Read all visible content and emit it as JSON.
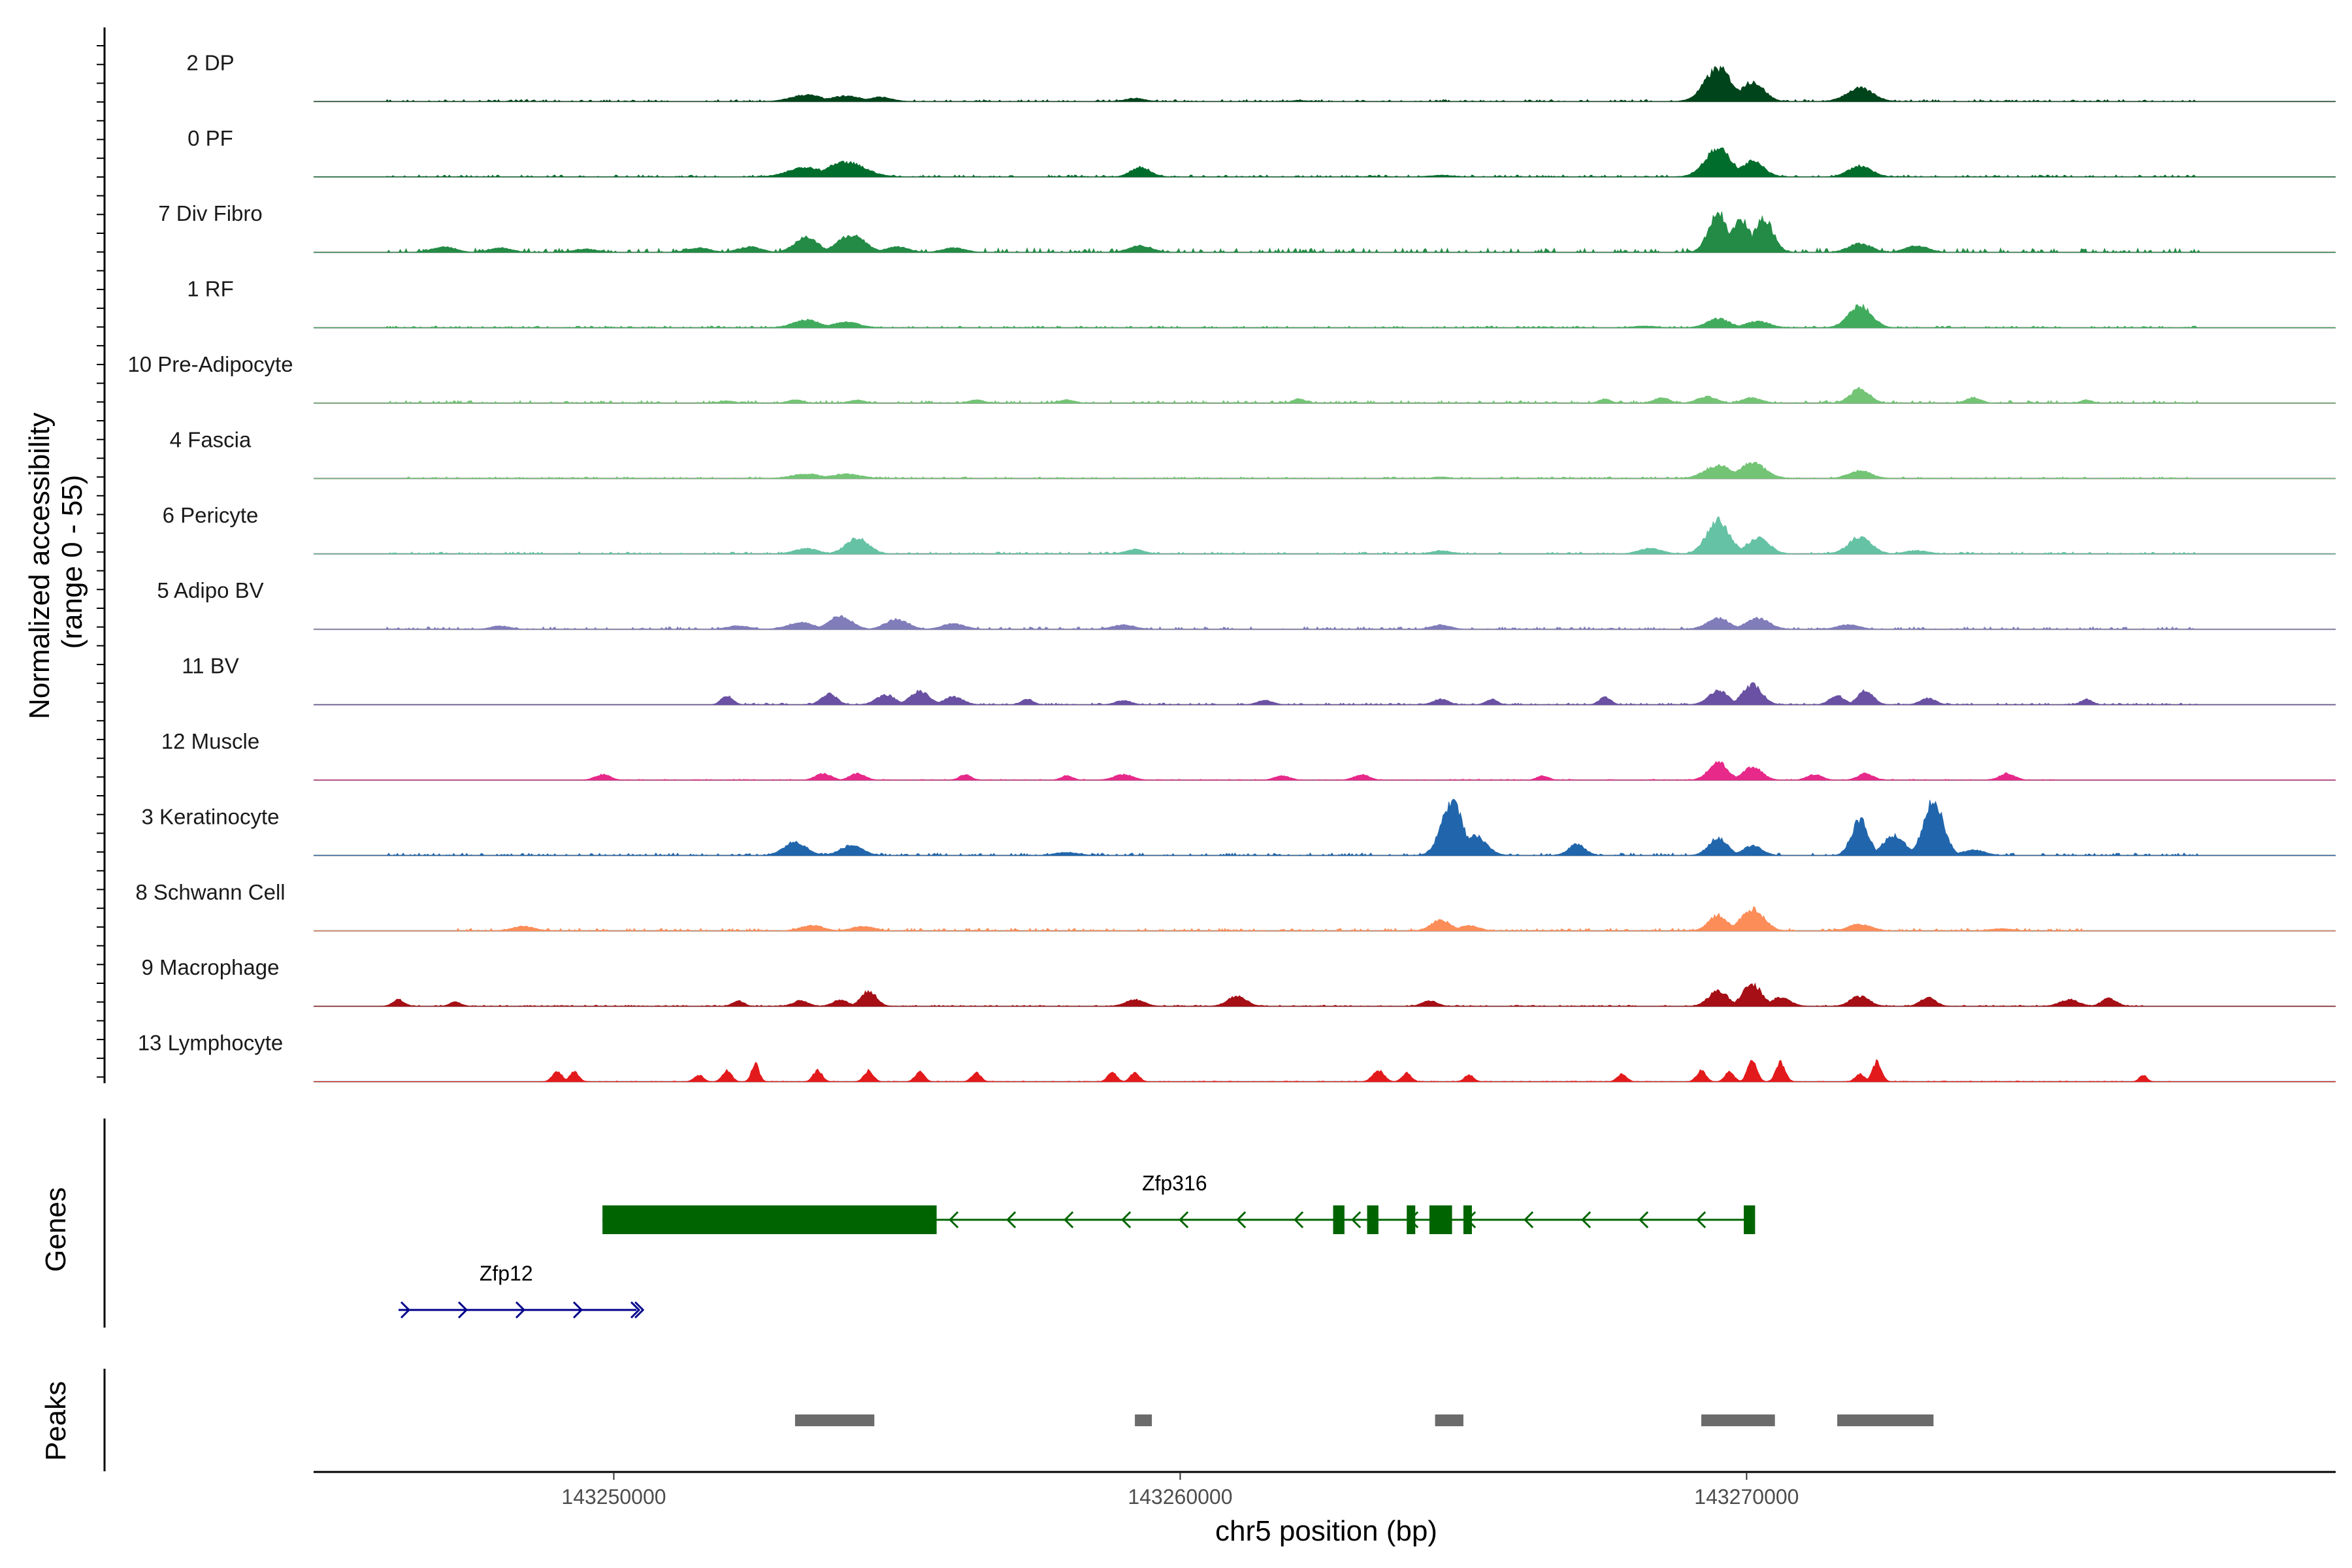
{
  "chart_data": {
    "type": "area",
    "region": {
      "chrom": "chr5",
      "start": 143244700,
      "end": 143280400
    },
    "y_title_line1": "Normalized accessibility",
    "y_title_line2": "(range 0 - 55)",
    "ylim": [
      0,
      55
    ],
    "x_axis": {
      "label": "chr5 position (bp)",
      "ticks": [
        143250000,
        143260000,
        143270000
      ],
      "tick_labels": [
        "143250000",
        "143260000",
        "143270000"
      ]
    },
    "panel_titles": {
      "genes": "Genes",
      "peaks": "Peaks"
    },
    "tracks": [
      {
        "name": "2 DP",
        "color": "#00441b",
        "peaks": [
          [
            143253400,
            6,
            400
          ],
          [
            143254100,
            5,
            400
          ],
          [
            143254700,
            4,
            300
          ],
          [
            143259200,
            3,
            250
          ],
          [
            143269500,
            30,
            350
          ],
          [
            143270100,
            18,
            300
          ],
          [
            143272000,
            12,
            350
          ],
          [
            143262100,
            1,
            200
          ]
        ],
        "noise": [
          [
            143246000,
            143278000,
            1.2
          ]
        ]
      },
      {
        "name": "0 PF",
        "color": "#006d2c",
        "peaks": [
          [
            143253400,
            9,
            450
          ],
          [
            143254100,
            13,
            500
          ],
          [
            143259300,
            9,
            250
          ],
          [
            143269500,
            25,
            350
          ],
          [
            143270100,
            14,
            300
          ],
          [
            143272000,
            10,
            300
          ],
          [
            143264600,
            1.5,
            300
          ]
        ],
        "noise": [
          [
            143246000,
            143278000,
            1.2
          ]
        ]
      },
      {
        "name": "7 Div Fibro",
        "color": "#238b45",
        "peaks": [
          [
            143247000,
            5,
            300
          ],
          [
            143248000,
            4,
            300
          ],
          [
            143249500,
            3,
            300
          ],
          [
            143251500,
            4,
            300
          ],
          [
            143252400,
            5,
            300
          ],
          [
            143253400,
            14,
            300
          ],
          [
            143254200,
            16,
            350
          ],
          [
            143255000,
            5,
            300
          ],
          [
            143256000,
            4,
            300
          ],
          [
            143259300,
            6,
            300
          ],
          [
            143269500,
            35,
            250
          ],
          [
            143269900,
            30,
            250
          ],
          [
            143270300,
            30,
            250
          ],
          [
            143272000,
            8,
            300
          ],
          [
            143273000,
            6,
            300
          ]
        ],
        "noise": [
          [
            143246000,
            143278000,
            2.5
          ]
        ]
      },
      {
        "name": "1 RF",
        "color": "#41ab5d",
        "peaks": [
          [
            143253400,
            7,
            350
          ],
          [
            143254100,
            5,
            350
          ],
          [
            143269500,
            8,
            300
          ],
          [
            143270200,
            6,
            300
          ],
          [
            143272000,
            20,
            300
          ],
          [
            143268200,
            1.5,
            300
          ]
        ],
        "noise": [
          [
            143246000,
            143278000,
            1.0
          ]
        ]
      },
      {
        "name": "10 Pre-Adipocyte",
        "color": "#74c476",
        "peaks": [
          [
            143252000,
            2,
            200
          ],
          [
            143253200,
            3,
            200
          ],
          [
            143254300,
            3,
            200
          ],
          [
            143256400,
            3,
            200
          ],
          [
            143258000,
            3,
            200
          ],
          [
            143262100,
            4,
            150
          ],
          [
            143267500,
            4,
            150
          ],
          [
            143268500,
            5,
            200
          ],
          [
            143269300,
            6,
            250
          ],
          [
            143270100,
            5,
            250
          ],
          [
            143272000,
            13,
            250
          ],
          [
            143274000,
            5,
            200
          ],
          [
            143276000,
            3,
            150
          ]
        ],
        "noise": [
          [
            143246000,
            143278000,
            1.6
          ]
        ]
      },
      {
        "name": "4 Fascia",
        "color": "#74c476",
        "peaks": [
          [
            143253400,
            4,
            400
          ],
          [
            143254100,
            4,
            400
          ],
          [
            143269500,
            12,
            350
          ],
          [
            143270100,
            14,
            350
          ],
          [
            143272000,
            7,
            300
          ],
          [
            143264600,
            1.5,
            200
          ]
        ],
        "noise": [
          [
            143246000,
            143278000,
            1.0
          ]
        ]
      },
      {
        "name": "6 Pericyte",
        "color": "#66c2a4",
        "peaks": [
          [
            143253400,
            5,
            300
          ],
          [
            143254300,
            14,
            300
          ],
          [
            143259200,
            4,
            250
          ],
          [
            143264600,
            3,
            250
          ],
          [
            143268300,
            5,
            300
          ],
          [
            143269500,
            30,
            300
          ],
          [
            143270200,
            14,
            300
          ],
          [
            143272000,
            15,
            300
          ],
          [
            143273000,
            3,
            300
          ]
        ],
        "noise": [
          [
            143246000,
            143278000,
            1.2
          ]
        ]
      },
      {
        "name": "5 Adipo BV",
        "color": "#807dba",
        "peaks": [
          [
            143248000,
            3,
            250
          ],
          [
            143252200,
            3,
            300
          ],
          [
            143253300,
            6,
            350
          ],
          [
            143254000,
            12,
            300
          ],
          [
            143255000,
            9,
            300
          ],
          [
            143256000,
            5,
            300
          ],
          [
            143259000,
            4,
            300
          ],
          [
            143264600,
            4,
            250
          ],
          [
            143269500,
            10,
            300
          ],
          [
            143270200,
            10,
            300
          ],
          [
            143271800,
            4,
            300
          ]
        ],
        "noise": [
          [
            143246000,
            143278000,
            1.5
          ]
        ]
      },
      {
        "name": "11 BV",
        "color": "#6a51a3",
        "peaks": [
          [
            143252000,
            8,
            150
          ],
          [
            143253800,
            10,
            200
          ],
          [
            143254800,
            9,
            250
          ],
          [
            143255400,
            12,
            250
          ],
          [
            143256000,
            7,
            250
          ],
          [
            143257300,
            5,
            150
          ],
          [
            143259000,
            4,
            200
          ],
          [
            143261500,
            4,
            200
          ],
          [
            143264600,
            5,
            200
          ],
          [
            143265500,
            5,
            150
          ],
          [
            143267500,
            7,
            150
          ],
          [
            143269500,
            13,
            250
          ],
          [
            143270100,
            18,
            250
          ],
          [
            143271600,
            8,
            200
          ],
          [
            143272100,
            13,
            200
          ],
          [
            143273200,
            6,
            200
          ],
          [
            143276000,
            5,
            150
          ]
        ],
        "noise": [
          [
            143251800,
            143278000,
            1.0
          ]
        ]
      },
      {
        "name": "12 Muscle",
        "color": "#e7298a",
        "peaks": [
          [
            143249800,
            5,
            200
          ],
          [
            143253700,
            6,
            200
          ],
          [
            143254300,
            6,
            200
          ],
          [
            143256200,
            5,
            150
          ],
          [
            143258000,
            4,
            150
          ],
          [
            143259000,
            5,
            250
          ],
          [
            143261800,
            4,
            200
          ],
          [
            143263200,
            5,
            200
          ],
          [
            143266400,
            4,
            150
          ],
          [
            143269500,
            16,
            250
          ],
          [
            143270100,
            12,
            250
          ],
          [
            143271200,
            5,
            200
          ],
          [
            143272100,
            6,
            200
          ],
          [
            143274600,
            6,
            200
          ]
        ],
        "noise": [
          [
            143249500,
            143275500,
            0.5
          ]
        ]
      },
      {
        "name": "3 Keratinocyte",
        "color": "#2166ac",
        "peaks": [
          [
            143253200,
            12,
            300
          ],
          [
            143254200,
            9,
            300
          ],
          [
            143258000,
            3,
            300
          ],
          [
            143264800,
            48,
            280
          ],
          [
            143265200,
            18,
            300
          ],
          [
            143267000,
            10,
            220
          ],
          [
            143269500,
            16,
            250
          ],
          [
            143270100,
            9,
            250
          ],
          [
            143272000,
            32,
            220
          ],
          [
            143272600,
            18,
            280
          ],
          [
            143273300,
            48,
            260
          ],
          [
            143274000,
            5,
            300
          ]
        ],
        "noise": [
          [
            143246000,
            143278000,
            1.5
          ]
        ]
      },
      {
        "name": "8 Schwann Cell",
        "color": "#fc8d59",
        "peaks": [
          [
            143248400,
            4,
            300
          ],
          [
            143253500,
            5,
            300
          ],
          [
            143254400,
            4,
            300
          ],
          [
            143264600,
            10,
            250
          ],
          [
            143265100,
            5,
            250
          ],
          [
            143269500,
            14,
            250
          ],
          [
            143270100,
            20,
            300
          ],
          [
            143272000,
            6,
            300
          ],
          [
            143274500,
            2,
            300
          ]
        ],
        "noise": [
          [
            143247000,
            143276000,
            1.6
          ]
        ]
      },
      {
        "name": "9 Macrophage",
        "color": "#a50f15",
        "peaks": [
          [
            143246200,
            6,
            150
          ],
          [
            143247200,
            4,
            150
          ],
          [
            143252200,
            5,
            150
          ],
          [
            143253300,
            5,
            200
          ],
          [
            143254000,
            6,
            200
          ],
          [
            143254500,
            14,
            200
          ],
          [
            143259200,
            6,
            250
          ],
          [
            143261000,
            9,
            250
          ],
          [
            143264400,
            5,
            200
          ],
          [
            143269500,
            14,
            250
          ],
          [
            143270100,
            20,
            250
          ],
          [
            143270600,
            8,
            250
          ],
          [
            143272000,
            9,
            250
          ],
          [
            143273200,
            8,
            200
          ],
          [
            143275700,
            6,
            250
          ],
          [
            143276400,
            7,
            200
          ]
        ],
        "noise": [
          [
            143246000,
            143277000,
            0.7
          ]
        ]
      },
      {
        "name": "13 Lymphocyte",
        "color": "#e31a1c",
        "peaks": [
          [
            143249000,
            10,
            120
          ],
          [
            143249300,
            9,
            120
          ],
          [
            143251500,
            6,
            120
          ],
          [
            143252000,
            10,
            120
          ],
          [
            143252500,
            16,
            100
          ],
          [
            143253600,
            10,
            120
          ],
          [
            143254500,
            10,
            120
          ],
          [
            143255400,
            9,
            120
          ],
          [
            143256400,
            8,
            120
          ],
          [
            143258800,
            8,
            120
          ],
          [
            143259200,
            8,
            120
          ],
          [
            143263500,
            10,
            150
          ],
          [
            143264000,
            8,
            120
          ],
          [
            143265100,
            6,
            120
          ],
          [
            143267800,
            7,
            120
          ],
          [
            143269200,
            10,
            120
          ],
          [
            143269700,
            9,
            120
          ],
          [
            143270100,
            20,
            120
          ],
          [
            143270600,
            18,
            120
          ],
          [
            143272000,
            7,
            120
          ],
          [
            143272300,
            18,
            120
          ],
          [
            143277000,
            6,
            100
          ]
        ],
        "noise": [
          [
            143248500,
            143277500,
            0.4
          ]
        ]
      }
    ],
    "genes": [
      {
        "name": "Zfp316",
        "strand": "-",
        "start": 143249800,
        "end": 143270100,
        "color": "#006400",
        "exons": [
          [
            143249800,
            143255700
          ],
          [
            143262700,
            143262900
          ],
          [
            143263300,
            143263500
          ],
          [
            143264000,
            143264150
          ],
          [
            143264400,
            143264800
          ],
          [
            143265000,
            143265150
          ],
          [
            143269950,
            143270150
          ]
        ]
      },
      {
        "name": "Zfp12",
        "strand": "+",
        "start": 143246200,
        "end": 143250400,
        "color": "#00008b",
        "exons": []
      }
    ],
    "peaks": [
      [
        143253200,
        143254600
      ],
      [
        143259200,
        143259500
      ],
      [
        143264500,
        143265000
      ],
      [
        143269200,
        143270500
      ],
      [
        143271600,
        143273300
      ]
    ]
  }
}
